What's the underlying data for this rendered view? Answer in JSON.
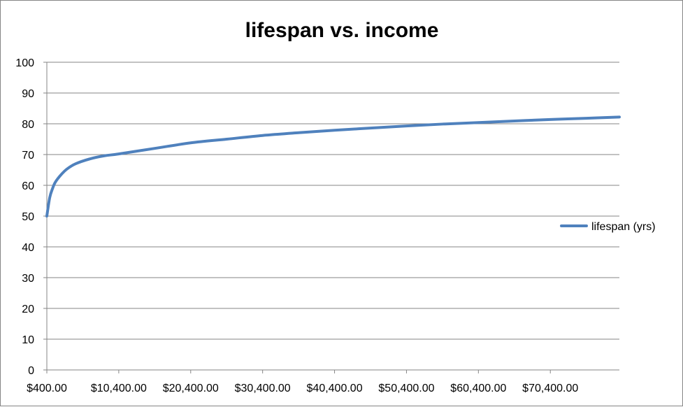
{
  "chart_data": {
    "type": "line",
    "title": "lifespan vs. income",
    "xlabel": "",
    "ylabel": "",
    "ylim": [
      0,
      100
    ],
    "xlim": [
      400,
      80000
    ],
    "y_ticks": [
      0,
      10,
      20,
      30,
      40,
      50,
      60,
      70,
      80,
      90,
      100
    ],
    "y_tick_labels": [
      "0",
      "10",
      "20",
      "30",
      "40",
      "50",
      "60",
      "70",
      "80",
      "90",
      "100"
    ],
    "x_ticks": [
      400,
      10400,
      20400,
      30400,
      40400,
      50400,
      60400,
      70400
    ],
    "x_tick_labels": [
      "$400.00",
      "$10,400.00",
      "$20,400.00",
      "$30,400.00",
      "$40,400.00",
      "$50,400.00",
      "$60,400.00",
      "$70,400.00"
    ],
    "grid": "horizontal",
    "legend": "right",
    "series": [
      {
        "name": "lifespan (yrs)",
        "color": "#4F81BD",
        "points": [
          [
            400,
            50
          ],
          [
            800,
            56
          ],
          [
            1200,
            59
          ],
          [
            1600,
            61.1
          ],
          [
            2400,
            63.5
          ],
          [
            3200,
            65.3
          ],
          [
            4400,
            67
          ],
          [
            6400,
            68.6
          ],
          [
            8400,
            69.6
          ],
          [
            10400,
            70.2
          ],
          [
            15400,
            72
          ],
          [
            20400,
            73.8
          ],
          [
            25400,
            75
          ],
          [
            30400,
            76.2
          ],
          [
            35400,
            77.1
          ],
          [
            40400,
            77.9
          ],
          [
            45400,
            78.6
          ],
          [
            50400,
            79.3
          ],
          [
            55400,
            79.9
          ],
          [
            60400,
            80.4
          ],
          [
            65400,
            80.9
          ],
          [
            70400,
            81.4
          ],
          [
            75400,
            81.8
          ],
          [
            80000,
            82.2
          ]
        ]
      }
    ]
  }
}
